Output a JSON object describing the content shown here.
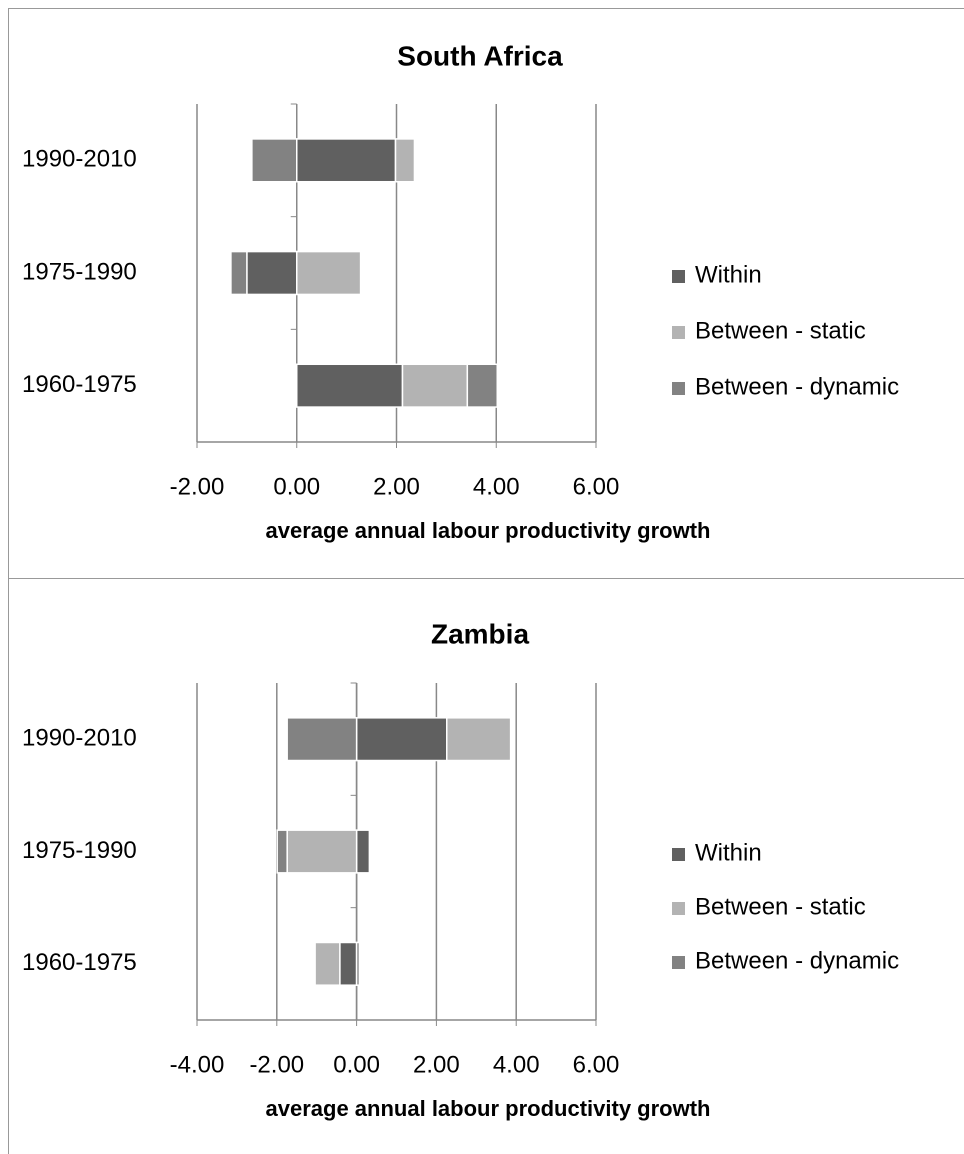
{
  "chart_data": [
    {
      "type": "bar",
      "orientation": "horizontal",
      "stacked": true,
      "title": "South Africa",
      "x_label": "average annual labour productivity growth",
      "categories": [
        "1960-1975",
        "1975-1990",
        "1990-2010"
      ],
      "series": [
        {
          "name": "Within",
          "color": "#606060",
          "values": [
            2.12,
            -1.0,
            1.98
          ]
        },
        {
          "name": "Between - static",
          "color": "#b3b3b3",
          "values": [
            1.3,
            1.28,
            0.38
          ]
        },
        {
          "name": "Between - dynamic",
          "color": "#828282",
          "values": [
            0.6,
            -0.32,
            -0.9
          ]
        }
      ],
      "xlim": [
        -2,
        6
      ],
      "xticks": [
        {
          "value": -2,
          "label": "-2.00"
        },
        {
          "value": 0,
          "label": "0.00"
        },
        {
          "value": 2,
          "label": "2.00"
        },
        {
          "value": 4,
          "label": "4.00"
        },
        {
          "value": 6,
          "label": "6.00"
        }
      ],
      "grid": true,
      "legend": "right"
    },
    {
      "type": "bar",
      "orientation": "horizontal",
      "stacked": true,
      "title": "Zambia",
      "x_label": "average annual labour productivity growth",
      "categories": [
        "1960-1975",
        "1975-1990",
        "1990-2010"
      ],
      "series": [
        {
          "name": "Within",
          "color": "#606060",
          "values": [
            -0.42,
            0.32,
            2.26
          ]
        },
        {
          "name": "Between - static",
          "color": "#b3b3b3",
          "values": [
            -0.62,
            -1.74,
            1.6
          ]
        },
        {
          "name": "Between - dynamic",
          "color": "#828282",
          "values": [
            0.07,
            -0.25,
            -1.74
          ]
        }
      ],
      "xlim": [
        -4,
        6
      ],
      "xticks": [
        {
          "value": -4,
          "label": "-4.00"
        },
        {
          "value": -2,
          "label": "-2.00"
        },
        {
          "value": 0,
          "label": "0.00"
        },
        {
          "value": 2,
          "label": "2.00"
        },
        {
          "value": 4,
          "label": "4.00"
        },
        {
          "value": 6,
          "label": "6.00"
        }
      ],
      "grid": true,
      "legend": "right"
    }
  ]
}
